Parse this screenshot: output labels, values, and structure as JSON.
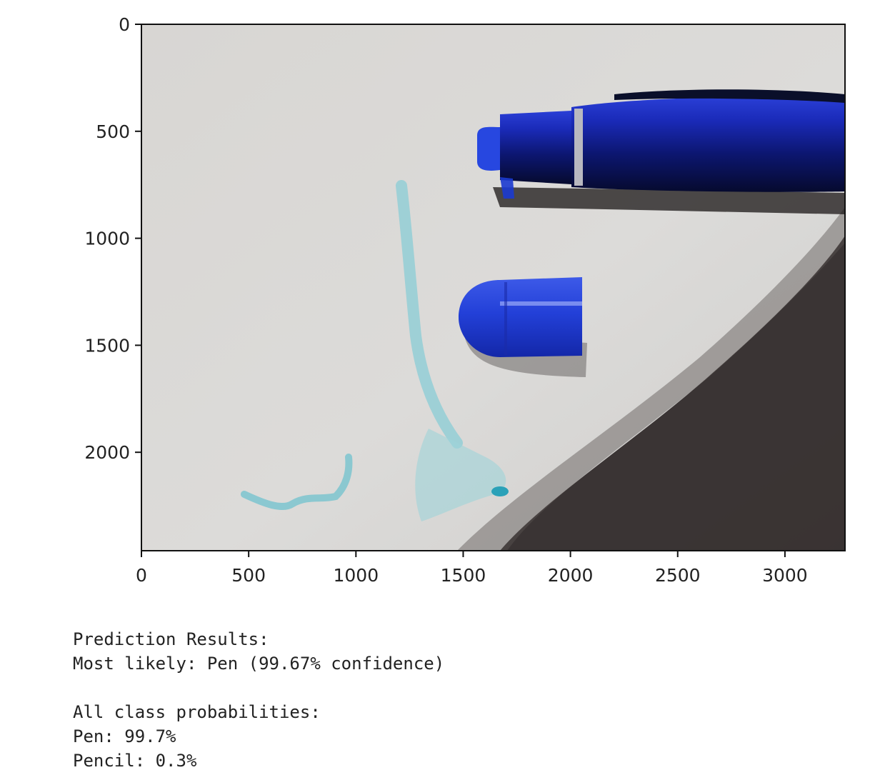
{
  "plot": {
    "type": "image",
    "xlim": [
      0,
      3280
    ],
    "ylim": [
      2460,
      0
    ],
    "x_ticks": [
      0,
      500,
      1000,
      1500,
      2000,
      2500,
      3000
    ],
    "y_ticks": [
      0,
      500,
      1000,
      1500,
      2000
    ],
    "image_subject": "blue-pen-and-cap-on-paper-with-ink-scribble",
    "colors": {
      "paper": "#dcdbd9",
      "pen_blue": "#1a2fbe",
      "pen_dark": "#08103a",
      "ink": "#6fc2cc",
      "shadow": "#2a2222"
    }
  },
  "output": {
    "line1": "Prediction Results:",
    "line2": "Most likely: Pen (99.67% confidence)",
    "line3": "",
    "line4": "All class probabilities:",
    "line5": "Pen: 99.7%",
    "line6": "Pencil: 0.3%"
  }
}
